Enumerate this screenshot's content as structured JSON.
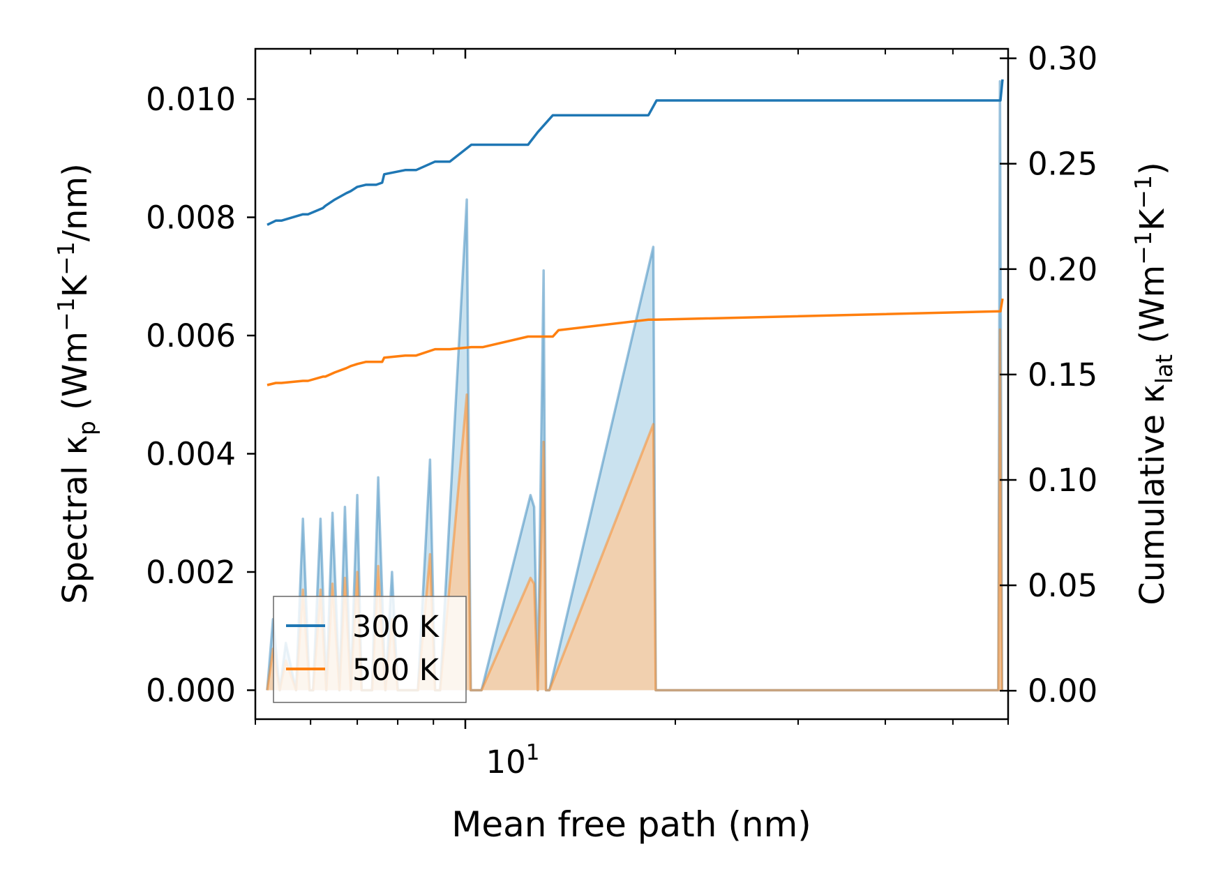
{
  "chart_data": {
    "type": "line",
    "x_scale": "log",
    "xlim": [
      5.0,
      60.0
    ],
    "xlabel": "Mean free path (nm)",
    "x_major_tick": {
      "value": 10,
      "base": "10",
      "exponent": "1"
    },
    "x_minor_ticks": [
      5,
      6,
      7,
      8,
      9,
      20,
      30,
      40,
      50,
      60
    ],
    "left_axis": {
      "label_parts": [
        "Spectral κ",
        "p",
        " (Wm",
        "−1",
        "K",
        "−1",
        "/nm)"
      ],
      "ylim": [
        -0.00049,
        0.01085
      ],
      "ticks": [
        0.0,
        0.002,
        0.004,
        0.006,
        0.008,
        0.01
      ],
      "tick_labels": [
        "0.000",
        "0.002",
        "0.004",
        "0.006",
        "0.008",
        "0.010"
      ]
    },
    "right_axis": {
      "label_parts": [
        "Cumulative κ",
        "lat",
        " (Wm",
        "−1",
        "K",
        "−1",
        ")"
      ],
      "ylim": [
        -0.0135,
        0.3045
      ],
      "ticks": [
        0.0,
        0.05,
        0.1,
        0.15,
        0.2,
        0.25,
        0.3
      ],
      "tick_labels": [
        "0.00",
        "0.05",
        "0.10",
        "0.15",
        "0.20",
        "0.25",
        "0.30"
      ]
    },
    "legend": {
      "position": "lower-left"
    },
    "series": [
      {
        "name": "300 K",
        "color": "#1f77b4",
        "fill_color": "#9ecae1",
        "spectral": {
          "x": [
            5.2,
            5.3,
            5.42,
            5.53,
            5.72,
            5.85,
            5.98,
            6.05,
            6.2,
            6.32,
            6.45,
            6.6,
            6.72,
            6.85,
            7.0,
            7.1,
            7.22,
            7.35,
            7.5,
            7.68,
            7.85,
            8.0,
            8.15,
            8.35,
            8.55,
            8.9,
            9.05,
            9.2,
            10.05,
            10.18,
            10.3,
            10.55,
            12.4,
            12.55,
            12.7,
            12.95,
            13.05,
            13.2,
            18.6,
            18.75,
            18.9,
            58.1,
            58.4,
            58.8
          ],
          "y": [
            0,
            0.0012,
            0,
            0.0008,
            0,
            0.0029,
            0,
            0,
            0.0029,
            0,
            0.003,
            0,
            0.0031,
            0,
            0.0033,
            0,
            0,
            0,
            0.0036,
            0,
            0.002,
            0,
            0,
            0,
            0,
            0.0039,
            0,
            0,
            0.0083,
            0,
            0,
            0,
            0.0033,
            0.0031,
            0,
            0.0071,
            0,
            0,
            0.0075,
            0,
            0,
            0,
            0.0103,
            0
          ]
        },
        "cumulative": {
          "x": [
            5.2,
            5.35,
            5.45,
            5.85,
            5.95,
            6.25,
            6.3,
            6.5,
            6.75,
            6.85,
            7.0,
            7.2,
            7.45,
            7.6,
            7.65,
            8.2,
            8.5,
            9.05,
            9.5,
            10.2,
            10.6,
            12.3,
            12.7,
            13.35,
            13.6,
            18.3,
            18.8,
            58.5,
            58.9
          ],
          "y": [
            0.221,
            0.223,
            0.223,
            0.226,
            0.226,
            0.229,
            0.23,
            0.233,
            0.236,
            0.237,
            0.239,
            0.24,
            0.24,
            0.241,
            0.245,
            0.247,
            0.247,
            0.251,
            0.251,
            0.259,
            0.259,
            0.259,
            0.265,
            0.273,
            0.273,
            0.273,
            0.28,
            0.28,
            0.29
          ]
        }
      },
      {
        "name": "500 K",
        "color": "#ff7f0e",
        "fill_color": "#fdc99a",
        "spectral": {
          "x": [
            5.2,
            5.3,
            5.42,
            5.53,
            5.72,
            5.85,
            5.98,
            6.05,
            6.2,
            6.32,
            6.45,
            6.6,
            6.72,
            6.85,
            7.0,
            7.1,
            7.22,
            7.35,
            7.5,
            7.68,
            7.85,
            8.0,
            8.15,
            8.35,
            8.55,
            8.9,
            9.05,
            9.2,
            10.05,
            10.18,
            10.3,
            10.55,
            12.4,
            12.55,
            12.7,
            12.95,
            13.05,
            13.2,
            18.6,
            18.75,
            18.9,
            58.1,
            58.4,
            58.8
          ],
          "y": [
            0,
            0.0007,
            0,
            0.0005,
            0,
            0.0017,
            0,
            0,
            0.0017,
            0,
            0.0018,
            0,
            0.0019,
            0,
            0.002,
            0,
            0,
            0,
            0.0021,
            0,
            0.0012,
            0,
            0,
            0,
            0,
            0.0023,
            0,
            0,
            0.005,
            0,
            0,
            0,
            0.0019,
            0.0018,
            0,
            0.0042,
            0,
            0,
            0.0045,
            0,
            0,
            0,
            0.0061,
            0
          ]
        },
        "cumulative": {
          "x": [
            5.2,
            5.35,
            5.45,
            5.85,
            5.95,
            6.25,
            6.3,
            6.5,
            6.75,
            6.85,
            7.0,
            7.2,
            7.45,
            7.6,
            7.65,
            8.2,
            8.5,
            9.05,
            9.5,
            10.2,
            10.6,
            12.3,
            12.7,
            13.35,
            13.6,
            18.3,
            18.8,
            58.5,
            58.9
          ],
          "y": [
            0.145,
            0.146,
            0.146,
            0.147,
            0.147,
            0.149,
            0.149,
            0.151,
            0.153,
            0.154,
            0.155,
            0.156,
            0.156,
            0.156,
            0.158,
            0.159,
            0.159,
            0.162,
            0.162,
            0.163,
            0.163,
            0.168,
            0.168,
            0.168,
            0.171,
            0.176,
            0.176,
            0.18,
            0.186
          ]
        }
      }
    ]
  }
}
